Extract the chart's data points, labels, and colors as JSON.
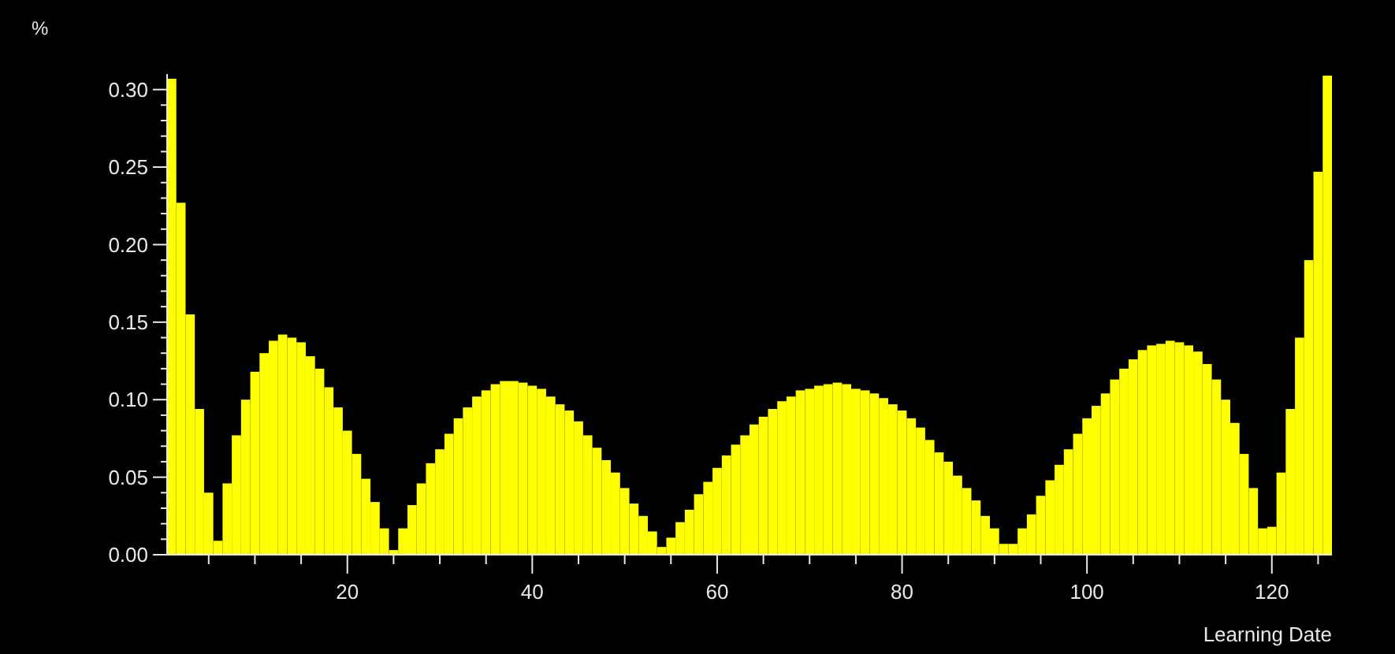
{
  "chart_data": {
    "type": "bar",
    "xlabel": "Learning Date",
    "ylabel": "%",
    "color": "#ffff00",
    "x": [
      1,
      2,
      3,
      4,
      5,
      6,
      7,
      8,
      9,
      10,
      11,
      12,
      13,
      14,
      15,
      16,
      17,
      18,
      19,
      20,
      21,
      22,
      23,
      24,
      25,
      26,
      27,
      28,
      29,
      30,
      31,
      32,
      33,
      34,
      35,
      36,
      37,
      38,
      39,
      40,
      41,
      42,
      43,
      44,
      45,
      46,
      47,
      48,
      49,
      50,
      51,
      52,
      53,
      54,
      55,
      56,
      57,
      58,
      59,
      60,
      61,
      62,
      63,
      64,
      65,
      66,
      67,
      68,
      69,
      70,
      71,
      72,
      73,
      74,
      75,
      76,
      77,
      78,
      79,
      80,
      81,
      82,
      83,
      84,
      85,
      86,
      87,
      88,
      89,
      90,
      91,
      92,
      93,
      94,
      95,
      96,
      97,
      98,
      99,
      100,
      101,
      102,
      103,
      104,
      105,
      106,
      107,
      108,
      109,
      110,
      111,
      112,
      113,
      114,
      115,
      116,
      117,
      118,
      119,
      120,
      121,
      122,
      123,
      124,
      125,
      126
    ],
    "values": [
      0.307,
      0.227,
      0.155,
      0.094,
      0.04,
      0.009,
      0.046,
      0.077,
      0.1,
      0.118,
      0.13,
      0.138,
      0.142,
      0.14,
      0.137,
      0.128,
      0.12,
      0.108,
      0.095,
      0.08,
      0.065,
      0.049,
      0.034,
      0.017,
      0.003,
      0.017,
      0.032,
      0.046,
      0.059,
      0.068,
      0.078,
      0.088,
      0.095,
      0.102,
      0.106,
      0.11,
      0.112,
      0.112,
      0.111,
      0.109,
      0.107,
      0.102,
      0.097,
      0.093,
      0.086,
      0.077,
      0.069,
      0.061,
      0.053,
      0.043,
      0.033,
      0.025,
      0.015,
      0.005,
      0.011,
      0.021,
      0.029,
      0.039,
      0.047,
      0.056,
      0.064,
      0.071,
      0.077,
      0.084,
      0.089,
      0.094,
      0.099,
      0.102,
      0.106,
      0.107,
      0.109,
      0.11,
      0.111,
      0.11,
      0.107,
      0.106,
      0.104,
      0.101,
      0.097,
      0.093,
      0.088,
      0.082,
      0.074,
      0.066,
      0.06,
      0.051,
      0.043,
      0.035,
      0.025,
      0.017,
      0.007,
      0.007,
      0.017,
      0.026,
      0.038,
      0.048,
      0.058,
      0.068,
      0.078,
      0.088,
      0.096,
      0.104,
      0.113,
      0.12,
      0.126,
      0.132,
      0.135,
      0.136,
      0.138,
      0.137,
      0.135,
      0.131,
      0.123,
      0.113,
      0.1,
      0.085,
      0.065,
      0.043,
      0.017,
      0.018,
      0.053,
      0.094,
      0.14,
      0.19,
      0.247,
      0.309
    ],
    "xlim": [
      0.5,
      126.5
    ],
    "ylim": [
      0,
      0.31
    ],
    "xticks": [
      {
        "value": 5,
        "label": null
      },
      {
        "value": 10,
        "label": null
      },
      {
        "value": 15,
        "label": null
      },
      20,
      {
        "value": 25,
        "label": null
      },
      {
        "value": 30,
        "label": null
      },
      {
        "value": 35,
        "label": null
      },
      40,
      {
        "value": 45,
        "label": null
      },
      {
        "value": 50,
        "label": null
      },
      {
        "value": 55,
        "label": null
      },
      60,
      {
        "value": 65,
        "label": null
      },
      {
        "value": 70,
        "label": null
      },
      {
        "value": 75,
        "label": null
      },
      80,
      {
        "value": 85,
        "label": null
      },
      {
        "value": 90,
        "label": null
      },
      {
        "value": 95,
        "label": null
      },
      100,
      {
        "value": 105,
        "label": null
      },
      {
        "value": 110,
        "label": null
      },
      {
        "value": 115,
        "label": null
      },
      120,
      {
        "value": 125,
        "label": null
      }
    ],
    "yticks": [
      {
        "value": 0,
        "label": "0.00"
      },
      {
        "value": 0.01,
        "label": null
      },
      {
        "value": 0.02,
        "label": null
      },
      {
        "value": 0.03,
        "label": null
      },
      {
        "value": 0.04,
        "label": null
      },
      {
        "value": 0.05,
        "label": "0.05"
      },
      {
        "value": 0.06,
        "label": null
      },
      {
        "value": 0.07,
        "label": null
      },
      {
        "value": 0.08,
        "label": null
      },
      {
        "value": 0.09,
        "label": null
      },
      {
        "value": 0.1,
        "label": "0.10"
      },
      {
        "value": 0.11,
        "label": null
      },
      {
        "value": 0.12,
        "label": null
      },
      {
        "value": 0.13,
        "label": null
      },
      {
        "value": 0.14,
        "label": null
      },
      {
        "value": 0.15,
        "label": "0.15"
      },
      {
        "value": 0.16,
        "label": null
      },
      {
        "value": 0.17,
        "label": null
      },
      {
        "value": 0.18,
        "label": null
      },
      {
        "value": 0.19,
        "label": null
      },
      {
        "value": 0.2,
        "label": "0.20"
      },
      {
        "value": 0.21,
        "label": null
      },
      {
        "value": 0.22,
        "label": null
      },
      {
        "value": 0.23,
        "label": null
      },
      {
        "value": 0.24,
        "label": null
      },
      {
        "value": 0.25,
        "label": "0.25"
      },
      {
        "value": 0.26,
        "label": null
      },
      {
        "value": 0.27,
        "label": null
      },
      {
        "value": 0.28,
        "label": null
      },
      {
        "value": 0.29,
        "label": null
      },
      {
        "value": 0.3,
        "label": "0.30"
      }
    ]
  }
}
